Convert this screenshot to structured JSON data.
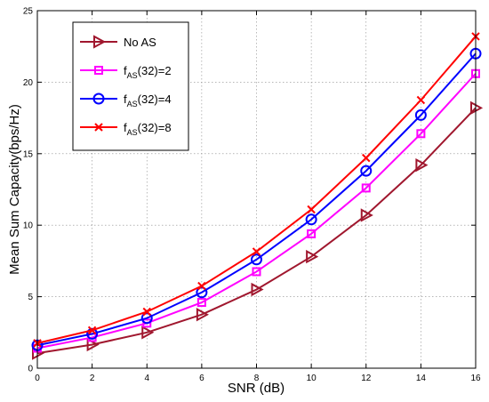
{
  "chart_data": {
    "type": "line",
    "xlabel": "SNR (dB)",
    "ylabel": "Mean Sum Capacity(bps/Hz)",
    "xlim": [
      0,
      16
    ],
    "ylim": [
      0,
      25
    ],
    "xticks": [
      0,
      2,
      4,
      6,
      8,
      10,
      12,
      14,
      16
    ],
    "yticks": [
      0,
      5,
      10,
      15,
      20,
      25
    ],
    "grid": true,
    "legend_placement": "top-left",
    "x": [
      0,
      2,
      4,
      6,
      8,
      10,
      12,
      14,
      16
    ],
    "series": [
      {
        "legend": {
          "main": "No AS",
          "sub": "",
          "tail": ""
        },
        "color": "#a0172e",
        "marker": "triangle-right",
        "values": [
          1.05,
          1.65,
          2.5,
          3.75,
          5.5,
          7.8,
          10.7,
          14.2,
          18.2
        ]
      },
      {
        "legend": {
          "main": "f",
          "sub": "AS",
          "tail": "(32)=2"
        },
        "color": "#ff00ff",
        "marker": "square",
        "values": [
          1.4,
          2.15,
          3.15,
          4.6,
          6.75,
          9.4,
          12.6,
          16.4,
          20.6
        ]
      },
      {
        "legend": {
          "main": "f",
          "sub": "AS",
          "tail": "(32)=4"
        },
        "color": "#0000ff",
        "marker": "circle",
        "values": [
          1.6,
          2.4,
          3.5,
          5.3,
          7.6,
          10.4,
          13.8,
          17.7,
          22.0
        ]
      },
      {
        "legend": {
          "main": "f",
          "sub": "AS",
          "tail": "(32)=8"
        },
        "color": "#ff0000",
        "marker": "x",
        "values": [
          1.75,
          2.65,
          3.95,
          5.75,
          8.15,
          11.1,
          14.7,
          18.75,
          23.2
        ]
      }
    ]
  }
}
